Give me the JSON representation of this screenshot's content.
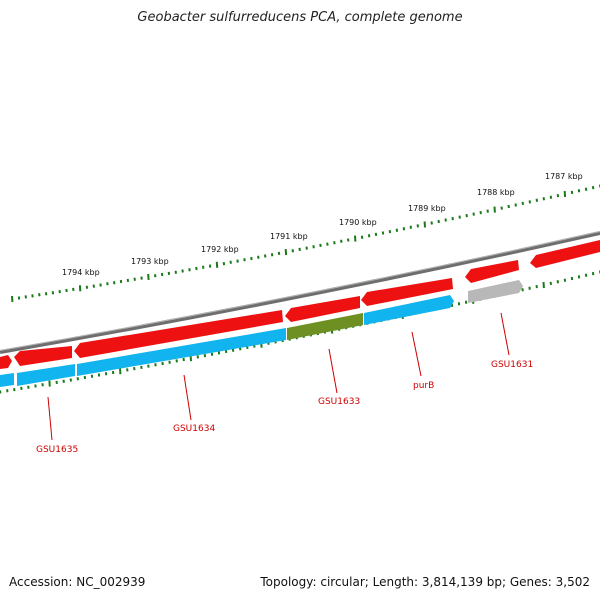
{
  "title": "Geobacter sulfurreducens PCA, complete genome",
  "footer": {
    "accession": "Accession: NC_002939",
    "summary": "Topology: circular; Length: 3,814,139 bp; Genes: 3,502"
  },
  "colors": {
    "backbone": "#7f7f7f",
    "forward_cds": "#ee1111",
    "reverse_cds": "#11b4ee",
    "highlight": "#6e8f22",
    "pseudo": "#b8b8b8",
    "ticks": "#1a7a1a",
    "label": "#cc0000"
  },
  "ticks": [
    {
      "label": "1794 kbp"
    },
    {
      "label": "1793 kbp"
    },
    {
      "label": "1792 kbp"
    },
    {
      "label": "1791 kbp"
    },
    {
      "label": "1790 kbp"
    },
    {
      "label": "1789 kbp"
    },
    {
      "label": "1788 kbp"
    },
    {
      "label": "1787 kbp"
    }
  ],
  "genes": [
    {
      "name": "GSU1635"
    },
    {
      "name": "GSU1634"
    },
    {
      "name": "GSU1633"
    },
    {
      "name": "purB"
    },
    {
      "name": "GSU1631"
    }
  ]
}
